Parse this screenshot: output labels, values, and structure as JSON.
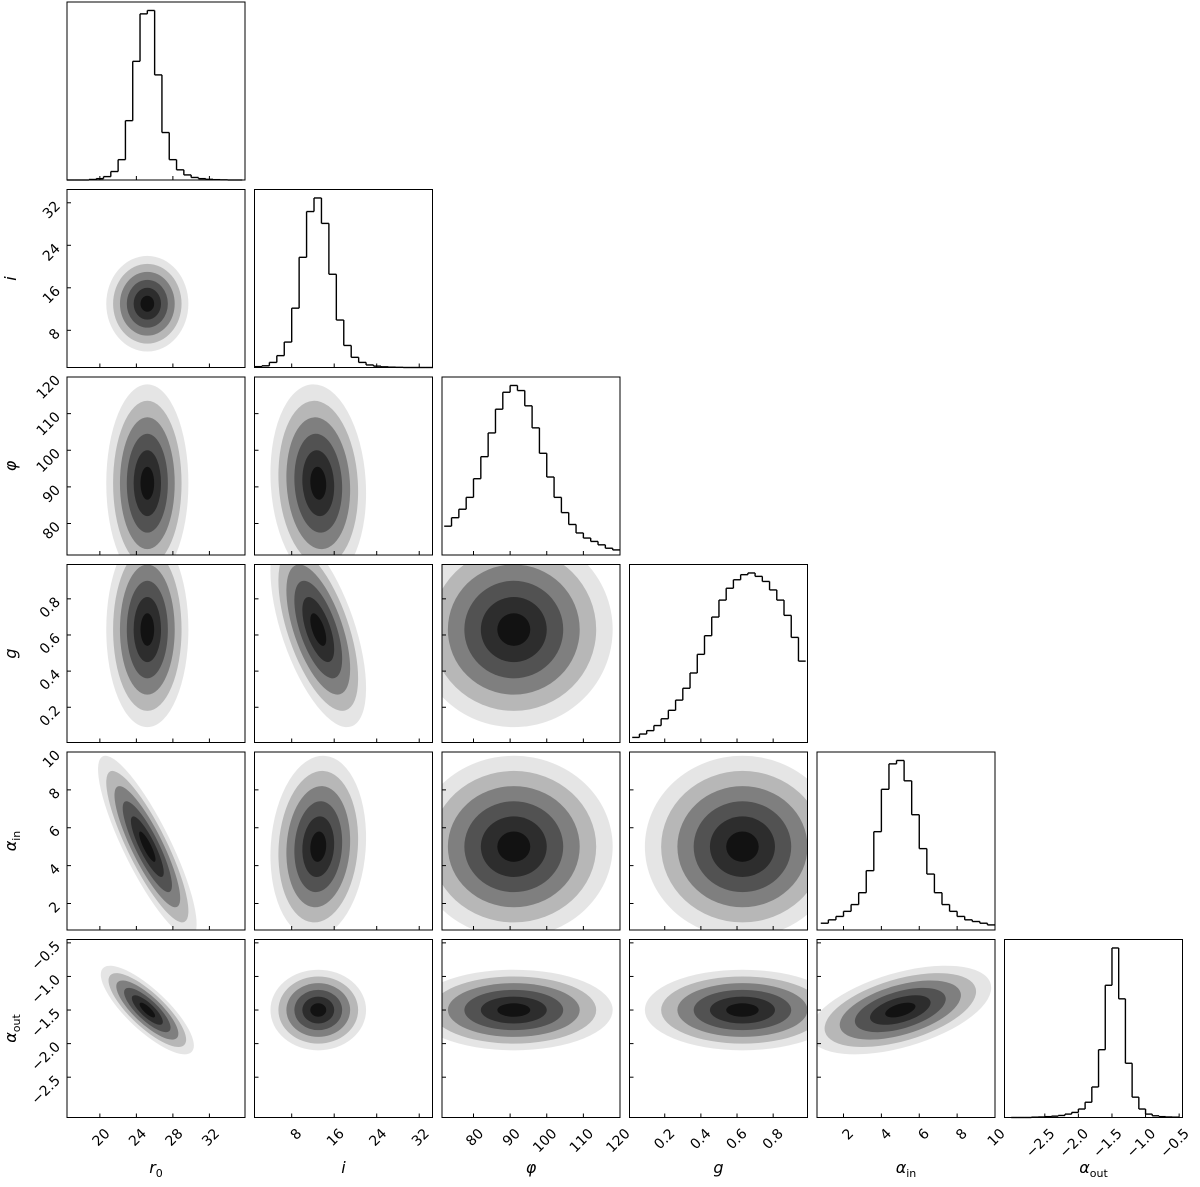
{
  "chart_data": {
    "type": "corner",
    "line_color": "#000000",
    "density_color": "#000000",
    "parameters": [
      {
        "symbol": "r",
        "subscript": "0",
        "lim": [
          16.4,
          35.9
        ],
        "ticks": [
          20,
          24,
          28,
          32
        ]
      },
      {
        "symbol": "i",
        "lim": [
          1,
          34.5
        ],
        "ticks": [
          8,
          16,
          24,
          32
        ]
      },
      {
        "symbol": "φ",
        "lim": [
          71.4,
          120
        ],
        "ticks": [
          80,
          90,
          100,
          110,
          120
        ]
      },
      {
        "symbol": "g",
        "lim": [
          0.005,
          0.99
        ],
        "ticks": [
          0.2,
          0.4,
          0.6,
          0.8
        ]
      },
      {
        "symbol": "α",
        "subscript": "in",
        "lim": [
          0.6,
          10
        ],
        "ticks": [
          2,
          4,
          6,
          8,
          10
        ]
      },
      {
        "symbol": "α",
        "subscript": "out",
        "lim": [
          -3.1,
          -0.45
        ],
        "ticks": [
          {
            "value": -2.5,
            "label": "−2.5"
          },
          {
            "value": -2,
            "label": "−2.0"
          },
          {
            "value": -1.5,
            "label": "−1.5"
          },
          {
            "value": -1,
            "label": "−1.0"
          },
          {
            "value": -0.5,
            "label": "−0.5"
          }
        ]
      }
    ],
    "histograms": [
      {
        "bins": [
          16.4,
          17.2,
          18,
          18.8,
          19.6,
          20.4,
          21.2,
          22,
          22.8,
          23.6,
          24.4,
          25.2,
          26,
          26.8,
          27.6,
          28.4,
          29.2,
          30,
          30.8,
          31.6,
          32.4,
          33.2,
          34,
          34.8,
          35.6
        ],
        "values": [
          0,
          0,
          0,
          0.3,
          0.8,
          2,
          5,
          12,
          35,
          70,
          98,
          100,
          62,
          28,
          12,
          6,
          3,
          1.5,
          0.8,
          0.4,
          0.2,
          0.1,
          0,
          0
        ],
        "ylim": [
          0,
          105
        ]
      },
      {
        "bins": [
          1,
          2.4,
          3.8,
          5.2,
          6.6,
          8,
          9.4,
          10.8,
          12.2,
          13.6,
          15,
          16.4,
          17.8,
          19.2,
          20.6,
          22,
          23.4,
          24.8,
          26.2,
          27.6,
          29,
          30.4,
          31.8,
          33.2,
          34.6
        ],
        "values": [
          0.5,
          1,
          3,
          7,
          15,
          35,
          65,
          92,
          100,
          85,
          55,
          28,
          13,
          6,
          3,
          1.5,
          0.8,
          0.4,
          0.2,
          0.1,
          0,
          0,
          0,
          0
        ],
        "ylim": [
          0,
          105
        ]
      },
      {
        "bins": [
          72,
          74,
          76,
          78,
          80,
          82,
          84,
          86,
          88,
          90,
          92,
          94,
          96,
          98,
          100,
          102,
          104,
          106,
          108,
          110,
          112,
          114,
          116,
          118,
          120
        ],
        "values": [
          17,
          22,
          27,
          34,
          45,
          58,
          72,
          86,
          96,
          100,
          97,
          88,
          75,
          60,
          46,
          34,
          25,
          18,
          13,
          10,
          8,
          6,
          4,
          3
        ],
        "ylim": [
          0,
          105
        ]
      },
      {
        "bins": [
          0.02,
          0.06,
          0.1,
          0.14,
          0.18,
          0.22,
          0.26,
          0.3,
          0.34,
          0.38,
          0.42,
          0.46,
          0.5,
          0.54,
          0.58,
          0.62,
          0.66,
          0.7,
          0.74,
          0.78,
          0.82,
          0.86,
          0.9,
          0.94,
          0.98
        ],
        "values": [
          3,
          5,
          7,
          10,
          14,
          19,
          25,
          32,
          41,
          52,
          63,
          74,
          84,
          91,
          96,
          99,
          100,
          98,
          95,
          90,
          84,
          75,
          62,
          48
        ],
        "ylim": [
          0,
          105
        ]
      },
      {
        "bins": [
          0.8,
          1.2,
          1.6,
          2,
          2.4,
          2.8,
          3.2,
          3.6,
          4,
          4.4,
          4.8,
          5.2,
          5.6,
          6,
          6.4,
          6.8,
          7.2,
          7.6,
          8,
          8.4,
          8.8,
          9.2,
          9.6,
          10
        ],
        "values": [
          4,
          6,
          8,
          11,
          15,
          22,
          35,
          58,
          83,
          98,
          100,
          88,
          68,
          48,
          33,
          22,
          15,
          11,
          8,
          6,
          5,
          4,
          3
        ],
        "ylim": [
          0,
          105
        ]
      },
      {
        "bins": [
          -3,
          -2.9,
          -2.8,
          -2.7,
          -2.6,
          -2.5,
          -2.4,
          -2.3,
          -2.2,
          -2.1,
          -2,
          -1.9,
          -1.8,
          -1.7,
          -1.6,
          -1.5,
          -1.4,
          -1.3,
          -1.2,
          -1.1,
          -1,
          -0.9,
          -0.8,
          -0.7,
          -0.6,
          -0.5
        ],
        "values": [
          0,
          0,
          0,
          0.2,
          0.3,
          0.5,
          0.8,
          1.2,
          2,
          3,
          5,
          9,
          18,
          40,
          78,
          100,
          70,
          32,
          12,
          5,
          2,
          1,
          0.5,
          0.3,
          0.2
        ],
        "ylim": [
          0,
          105
        ]
      }
    ],
    "pairs": [
      {
        "x": 0,
        "y": 1,
        "center": [
          25.2,
          13
        ],
        "sigma": [
          1.5,
          3
        ],
        "rho": 0
      },
      {
        "x": 0,
        "y": 2,
        "center": [
          25.2,
          91
        ],
        "sigma": [
          1.5,
          9
        ],
        "rho": 0
      },
      {
        "x": 1,
        "y": 2,
        "center": [
          13,
          91
        ],
        "sigma": [
          3,
          9
        ],
        "rho": -0.1
      },
      {
        "x": 0,
        "y": 3,
        "center": [
          25.2,
          0.63
        ],
        "sigma": [
          1.5,
          0.18
        ],
        "rho": 0
      },
      {
        "x": 1,
        "y": 3,
        "center": [
          13,
          0.63
        ],
        "sigma": [
          3,
          0.18
        ],
        "rho": -0.6
      },
      {
        "x": 2,
        "y": 3,
        "center": [
          91,
          0.63
        ],
        "sigma": [
          9,
          0.18
        ],
        "rho": 0
      },
      {
        "x": 0,
        "y": 4,
        "center": [
          25.2,
          5
        ],
        "sigma": [
          1.8,
          1.6
        ],
        "rho": -0.85
      },
      {
        "x": 1,
        "y": 4,
        "center": [
          13,
          5
        ],
        "sigma": [
          3,
          1.6
        ],
        "rho": 0.1
      },
      {
        "x": 2,
        "y": 4,
        "center": [
          91,
          5
        ],
        "sigma": [
          9,
          1.6
        ],
        "rho": 0
      },
      {
        "x": 3,
        "y": 4,
        "center": [
          0.63,
          5
        ],
        "sigma": [
          0.18,
          1.6
        ],
        "rho": 0
      },
      {
        "x": 0,
        "y": 5,
        "center": [
          25.2,
          -1.5
        ],
        "sigma": [
          1.7,
          0.22
        ],
        "rho": -0.8
      },
      {
        "x": 1,
        "y": 5,
        "center": [
          13,
          -1.5
        ],
        "sigma": [
          3,
          0.2
        ],
        "rho": 0
      },
      {
        "x": 2,
        "y": 5,
        "center": [
          91,
          -1.5
        ],
        "sigma": [
          9,
          0.2
        ],
        "rho": 0
      },
      {
        "x": 3,
        "y": 5,
        "center": [
          0.63,
          -1.5
        ],
        "sigma": [
          0.18,
          0.2
        ],
        "rho": 0
      },
      {
        "x": 4,
        "y": 5,
        "center": [
          5,
          -1.5
        ],
        "sigma": [
          1.6,
          0.22
        ],
        "rho": 0.5
      }
    ]
  }
}
